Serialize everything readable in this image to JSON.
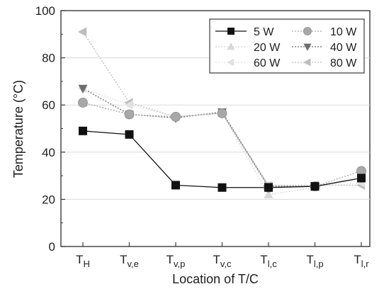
{
  "chart_data": {
    "type": "line",
    "xlabel": "Location of T/C",
    "ylabel": "Temperature (°C)",
    "ylim": [
      0,
      100
    ],
    "yticks": [
      0,
      20,
      40,
      60,
      80,
      100
    ],
    "grid": true,
    "legend_position": "top-right",
    "categories": [
      {
        "main": "T",
        "sub": "H"
      },
      {
        "main": "T",
        "sub": "v,e"
      },
      {
        "main": "T",
        "sub": "v,p"
      },
      {
        "main": "T",
        "sub": "v,c"
      },
      {
        "main": "T",
        "sub": "l,c"
      },
      {
        "main": "T",
        "sub": "l,p"
      },
      {
        "main": "T",
        "sub": "l,r"
      }
    ],
    "series": [
      {
        "name": "5 W",
        "marker": "square",
        "color": "#111111",
        "values": [
          49,
          47.5,
          26,
          25,
          25,
          25.5,
          29
        ]
      },
      {
        "name": "10 W",
        "marker": "circle",
        "color": "#a8a8a8",
        "values": [
          61,
          56,
          55,
          56.5,
          25,
          25.5,
          32
        ]
      },
      {
        "name": "20 W",
        "marker": "triangle-up",
        "color": "#d8d8d8",
        "values": [
          61,
          56,
          55,
          56.5,
          22,
          25,
          30
        ]
      },
      {
        "name": "40 W",
        "marker": "triangle-down",
        "color": "#6e6e6e",
        "values": [
          67,
          56,
          54.5,
          57,
          25.5,
          25.5,
          29
        ]
      },
      {
        "name": "60 W",
        "marker": "triangle-left",
        "color": "#e2e2e2",
        "values": [
          67,
          60,
          55,
          57,
          26,
          25.5,
          27
        ]
      },
      {
        "name": "80 W",
        "marker": "triangle-left",
        "color": "#bdbdbd",
        "values": [
          91,
          61,
          55,
          56.5,
          26,
          26,
          26
        ]
      }
    ]
  }
}
